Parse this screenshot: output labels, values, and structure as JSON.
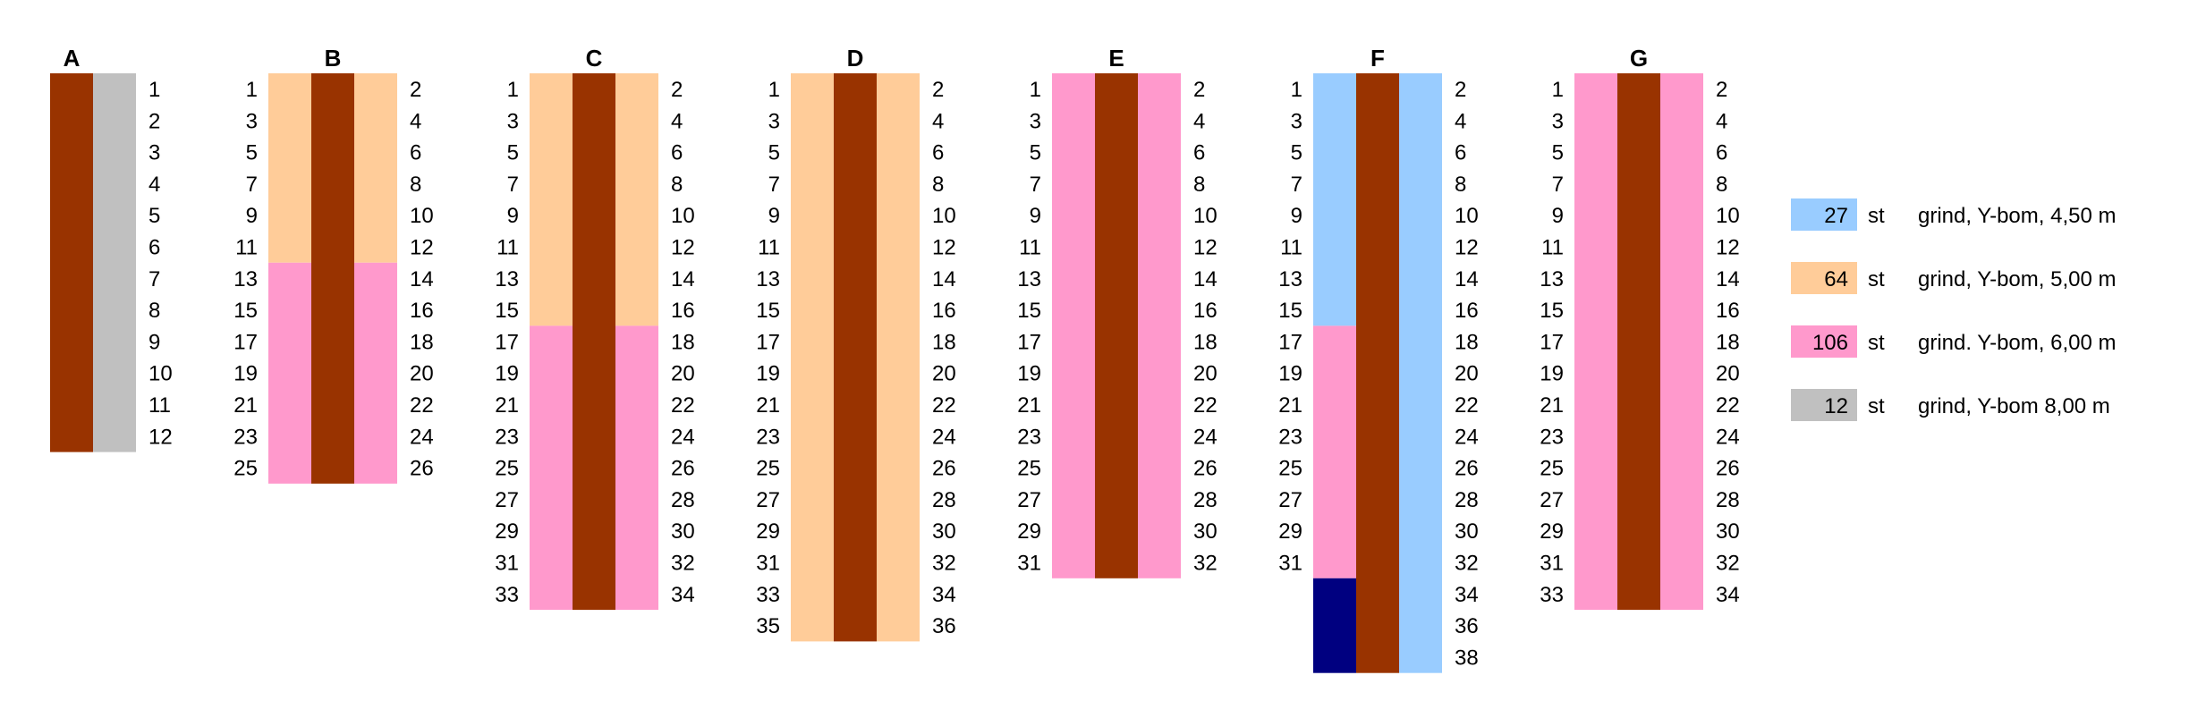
{
  "colors": {
    "walkway": "#993300",
    "gray": "#C0C0C0",
    "peach": "#FFCC99",
    "pink": "#FF99CC",
    "lightblue": "#99CCFF",
    "navy": "#000080"
  },
  "piers": [
    {
      "id": "A",
      "left": [],
      "right": [
        "1",
        "2",
        "3",
        "4",
        "5",
        "6",
        "7",
        "8",
        "9",
        "10",
        "11",
        "12"
      ],
      "left_segments": [],
      "right_segments": [
        {
          "color": "gray",
          "count": 12
        }
      ]
    },
    {
      "id": "B",
      "left": [
        "1",
        "3",
        "5",
        "7",
        "9",
        "11",
        "13",
        "15",
        "17",
        "19",
        "21",
        "23",
        "25"
      ],
      "right": [
        "2",
        "4",
        "6",
        "8",
        "10",
        "12",
        "14",
        "16",
        "18",
        "20",
        "22",
        "24",
        "26"
      ],
      "left_segments": [
        {
          "color": "peach",
          "count": 6
        },
        {
          "color": "pink",
          "count": 7
        }
      ],
      "right_segments": [
        {
          "color": "peach",
          "count": 6
        },
        {
          "color": "pink",
          "count": 7
        }
      ]
    },
    {
      "id": "C",
      "left": [
        "1",
        "3",
        "5",
        "7",
        "9",
        "11",
        "13",
        "15",
        "17",
        "19",
        "21",
        "23",
        "25",
        "27",
        "29",
        "31",
        "33"
      ],
      "right": [
        "2",
        "4",
        "6",
        "8",
        "10",
        "12",
        "14",
        "16",
        "18",
        "20",
        "22",
        "24",
        "26",
        "28",
        "30",
        "32",
        "34"
      ],
      "left_segments": [
        {
          "color": "peach",
          "count": 8
        },
        {
          "color": "pink",
          "count": 9
        }
      ],
      "right_segments": [
        {
          "color": "peach",
          "count": 8
        },
        {
          "color": "pink",
          "count": 9
        }
      ]
    },
    {
      "id": "D",
      "left": [
        "1",
        "3",
        "5",
        "7",
        "9",
        "11",
        "13",
        "15",
        "17",
        "19",
        "21",
        "23",
        "25",
        "27",
        "29",
        "31",
        "33",
        "35"
      ],
      "right": [
        "2",
        "4",
        "6",
        "8",
        "10",
        "12",
        "14",
        "16",
        "18",
        "20",
        "22",
        "24",
        "26",
        "28",
        "30",
        "32",
        "34",
        "36"
      ],
      "left_segments": [
        {
          "color": "peach",
          "count": 18
        }
      ],
      "right_segments": [
        {
          "color": "peach",
          "count": 18
        }
      ]
    },
    {
      "id": "E",
      "left": [
        "1",
        "3",
        "5",
        "7",
        "9",
        "11",
        "13",
        "15",
        "17",
        "19",
        "21",
        "23",
        "25",
        "27",
        "29",
        "31"
      ],
      "right": [
        "2",
        "4",
        "6",
        "8",
        "10",
        "12",
        "14",
        "16",
        "18",
        "20",
        "22",
        "24",
        "26",
        "28",
        "30",
        "32"
      ],
      "left_segments": [
        {
          "color": "pink",
          "count": 16
        }
      ],
      "right_segments": [
        {
          "color": "pink",
          "count": 16
        }
      ]
    },
    {
      "id": "F",
      "left": [
        "1",
        "3",
        "5",
        "7",
        "9",
        "11",
        "13",
        "15",
        "17",
        "19",
        "21",
        "23",
        "25",
        "27",
        "29",
        "31"
      ],
      "right": [
        "2",
        "4",
        "6",
        "8",
        "10",
        "12",
        "14",
        "16",
        "18",
        "20",
        "22",
        "24",
        "26",
        "28",
        "30",
        "32",
        "34",
        "36",
        "38"
      ],
      "left_segments": [
        {
          "color": "lightblue",
          "count": 8
        },
        {
          "color": "pink",
          "count": 8
        },
        {
          "color": "navy",
          "count": 3
        }
      ],
      "right_segments": [
        {
          "color": "lightblue",
          "count": 19
        }
      ]
    },
    {
      "id": "G",
      "left": [
        "1",
        "3",
        "5",
        "7",
        "9",
        "11",
        "13",
        "15",
        "17",
        "19",
        "21",
        "23",
        "25",
        "27",
        "29",
        "31",
        "33"
      ],
      "right": [
        "2",
        "4",
        "6",
        "8",
        "10",
        "12",
        "14",
        "16",
        "18",
        "20",
        "22",
        "24",
        "26",
        "28",
        "30",
        "32",
        "34"
      ],
      "left_segments": [
        {
          "color": "pink",
          "count": 17
        }
      ],
      "right_segments": [
        {
          "color": "pink",
          "count": 17
        }
      ]
    }
  ],
  "legend": [
    {
      "count": "27",
      "unit": "st",
      "text": "grind, Y-bom, 4,50 m",
      "color": "lightblue"
    },
    {
      "count": "64",
      "unit": "st",
      "text": "grind, Y-bom, 5,00 m",
      "color": "peach"
    },
    {
      "count": "106",
      "unit": "st",
      "text": "grind. Y-bom, 6,00 m",
      "color": "pink"
    },
    {
      "count": "12",
      "unit": "st",
      "text": "grind, Y-bom 8,00 m",
      "color": "gray"
    }
  ]
}
